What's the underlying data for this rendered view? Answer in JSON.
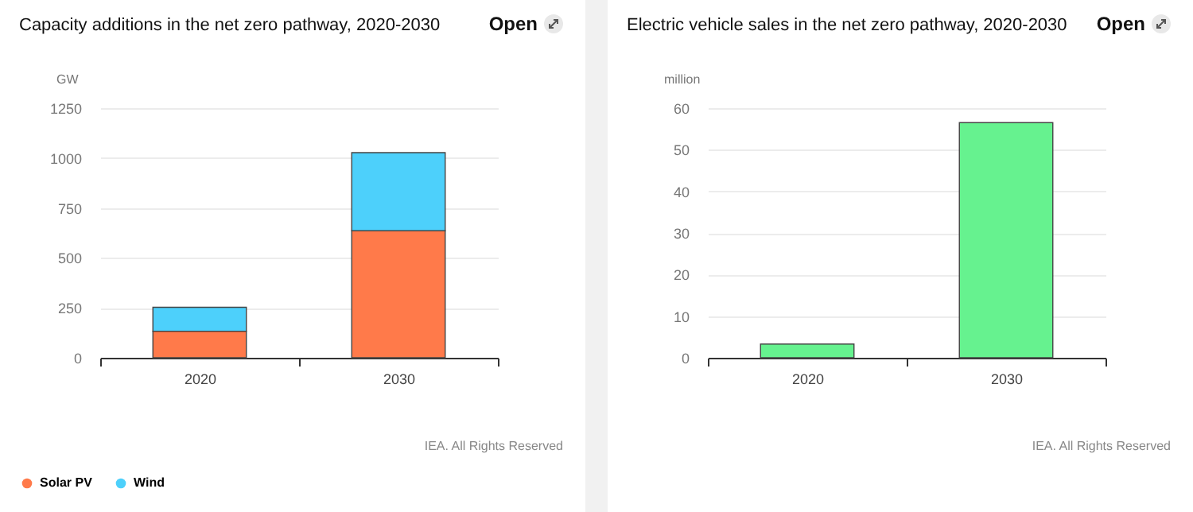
{
  "chart_data": [
    {
      "type": "bar",
      "title": "Capacity additions in the net zero pathway, 2020-2030",
      "ylabel": "GW",
      "categories": [
        "2020",
        "2030"
      ],
      "stacked": true,
      "series": [
        {
          "name": "Solar PV",
          "color": "#ff7a4a",
          "values": [
            133,
            636
          ]
        },
        {
          "name": "Wind",
          "color": "#4dd0fb",
          "values": [
            120,
            391
          ]
        }
      ],
      "ylim": [
        0,
        1250
      ],
      "yticks": [
        0,
        250,
        500,
        750,
        1000,
        1250
      ],
      "grid": "y",
      "legend": "bottom left",
      "annotations": [
        "Open",
        "IEA. All Rights Reserved"
      ]
    },
    {
      "type": "bar",
      "title": "Electric vehicle sales in the net zero pathway, 2020-2030",
      "ylabel": "million",
      "categories": [
        "2020",
        "2030"
      ],
      "series": [
        {
          "color": "#66f28f",
          "values": [
            3.3,
            56.5
          ]
        }
      ],
      "ylim": [
        0,
        60
      ],
      "yticks": [
        0,
        10,
        20,
        30,
        40,
        50,
        60
      ],
      "grid": "y",
      "annotations": [
        "Open",
        "IEA. All Rights Reserved"
      ]
    }
  ]
}
